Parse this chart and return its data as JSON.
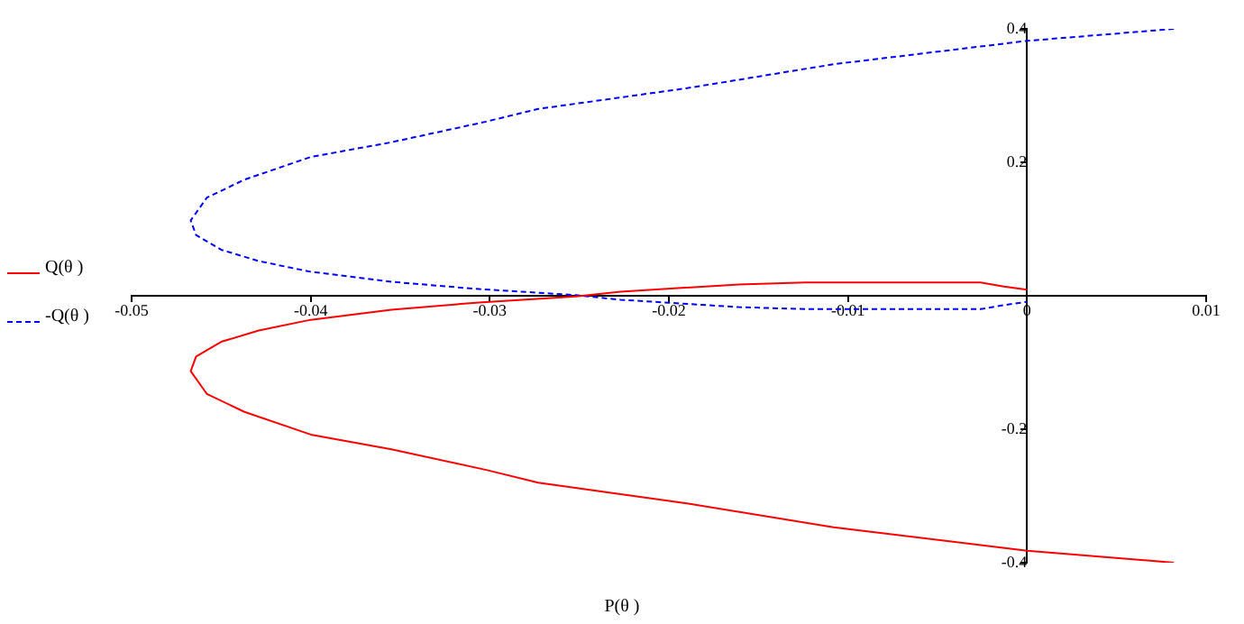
{
  "chart_data": {
    "type": "line",
    "xlabel": "P(θ )",
    "legend": "left",
    "grid": false,
    "marker": "none",
    "xlim": [
      -0.05,
      0.01
    ],
    "xticks": [
      -0.05,
      -0.04,
      -0.03,
      -0.02,
      -0.01,
      0,
      0.01
    ],
    "ylim": [
      -0.4,
      0.4
    ],
    "yticks": [
      -0.4,
      -0.2,
      0.2,
      0.4
    ],
    "series": [
      {
        "name": "Q(θ )",
        "color": "#ff0000",
        "line_style": "solid",
        "x": [
          0.0082,
          0,
          -0.0108,
          -0.019,
          -0.0273,
          -0.0302,
          -0.0355,
          -0.04,
          -0.0437,
          -0.0458,
          -0.0467,
          -0.0464,
          -0.045,
          -0.0429,
          -0.04,
          -0.0355,
          -0.0306,
          -0.0252,
          -0.0227,
          -0.0161,
          -0.0124,
          -0.0026,
          -0.0013,
          0
        ],
        "values": [
          -0.4,
          -0.382,
          -0.347,
          -0.311,
          -0.28,
          -0.261,
          -0.23,
          -0.208,
          -0.174,
          -0.147,
          -0.113,
          -0.091,
          -0.069,
          -0.052,
          -0.036,
          -0.021,
          -0.01,
          -0.001,
          0.006,
          0.017,
          0.02,
          0.02,
          0.014,
          0.009
        ]
      },
      {
        "name": "-Q(θ )",
        "color": "#0000ff",
        "line_style": "dashed",
        "x": [
          0.0082,
          0,
          -0.0108,
          -0.019,
          -0.0273,
          -0.0302,
          -0.0355,
          -0.04,
          -0.0437,
          -0.0458,
          -0.0467,
          -0.0464,
          -0.045,
          -0.0429,
          -0.04,
          -0.0355,
          -0.0306,
          -0.0252,
          -0.0227,
          -0.0161,
          -0.0124,
          -0.0026,
          -0.0013,
          0
        ],
        "values": [
          0.4,
          0.382,
          0.347,
          0.311,
          0.28,
          0.261,
          0.23,
          0.208,
          0.174,
          0.147,
          0.113,
          0.091,
          0.069,
          0.052,
          0.036,
          0.021,
          0.01,
          0.001,
          -0.006,
          -0.017,
          -0.02,
          -0.02,
          -0.014,
          -0.009
        ]
      }
    ]
  }
}
